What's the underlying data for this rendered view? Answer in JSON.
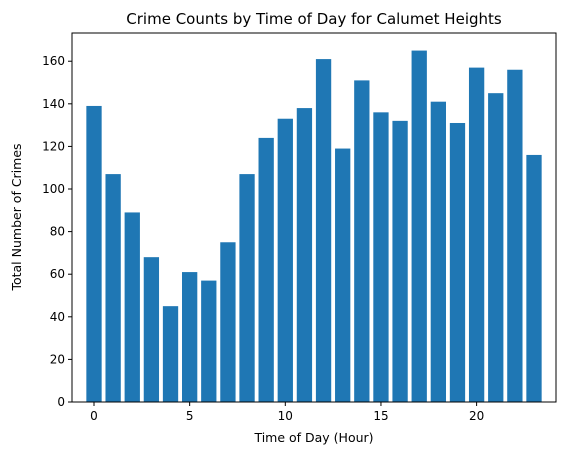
{
  "chart_data": {
    "type": "bar",
    "title": "Crime Counts by Time of Day for Calumet Heights",
    "xlabel": "Time of Day (Hour)",
    "ylabel": "Total Number of Crimes",
    "x": [
      0,
      1,
      2,
      3,
      4,
      5,
      6,
      7,
      8,
      9,
      10,
      11,
      12,
      13,
      14,
      15,
      16,
      17,
      18,
      19,
      20,
      21,
      22,
      23
    ],
    "values": [
      139,
      107,
      89,
      68,
      45,
      61,
      57,
      75,
      107,
      124,
      133,
      138,
      161,
      119,
      151,
      136,
      132,
      165,
      141,
      131,
      157,
      145,
      156,
      116
    ],
    "bar_color": "#1f77b4",
    "xlim": [
      -1.15,
      24.15
    ],
    "ylim": [
      0,
      173.25
    ],
    "xticks": [
      0,
      5,
      10,
      15,
      20
    ],
    "xtick_labels": [
      "0",
      "5",
      "10",
      "15",
      "20"
    ],
    "yticks": [
      0,
      20,
      40,
      60,
      80,
      100,
      120,
      140,
      160
    ],
    "ytick_labels": [
      "0",
      "20",
      "40",
      "60",
      "80",
      "100",
      "120",
      "140",
      "160"
    ],
    "grid": false,
    "legend": false
  }
}
